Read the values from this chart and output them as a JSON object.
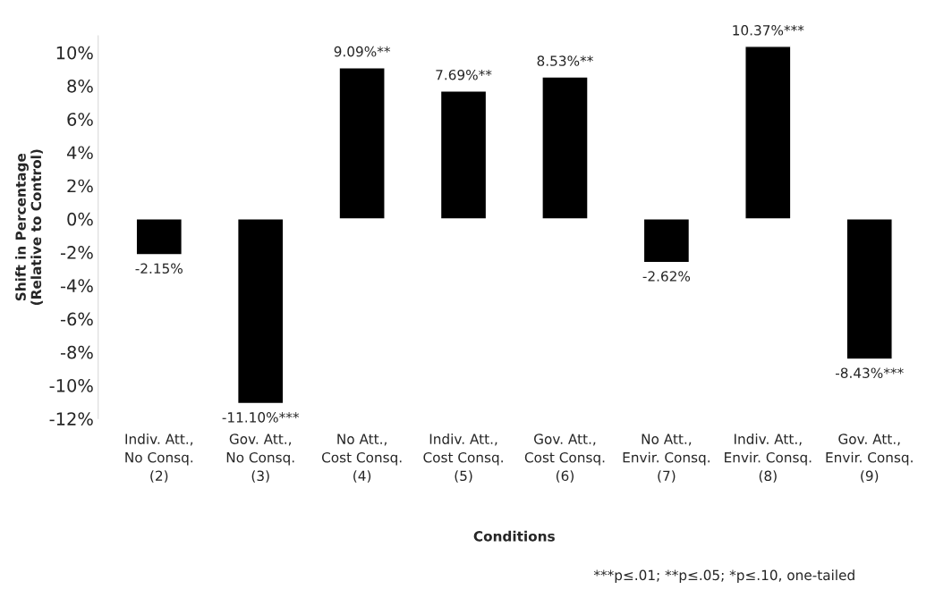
{
  "chart_data": {
    "type": "bar",
    "xlabel": "Conditions",
    "ylabel": "Shift in Percentage\n(Relative to Control)",
    "categories": [
      "Indiv. Att.,\nNo Consq.\n(2)",
      "Gov. Att.,\nNo Consq.\n(3)",
      "No Att.,\nCost Consq.\n(4)",
      "Indiv. Att.,\nCost Consq.\n(5)",
      "Gov. Att.,\nCost Consq.\n(6)",
      "No Att.,\nEnvir. Consq.\n(7)",
      "Indiv. Att.,\nEnvir. Consq.\n(8)",
      "Gov. Att.,\nEnvir. Consq.\n(9)"
    ],
    "values": [
      -2.15,
      -11.1,
      9.09,
      7.69,
      8.53,
      -2.62,
      10.37,
      -8.43
    ],
    "value_labels": [
      "-2.15%",
      "-11.10%***",
      "9.09%**",
      "7.69%**",
      "8.53%**",
      "-2.62%",
      "10.37%***",
      "-8.43%***"
    ],
    "color": "#000000",
    "ylim": [
      -12,
      11
    ],
    "yticks": [
      {
        "value": -12,
        "label": "-12%"
      },
      {
        "value": -10,
        "label": "-10%"
      },
      {
        "value": -8,
        "label": "-8%"
      },
      {
        "value": -6,
        "label": "-6%"
      },
      {
        "value": -4,
        "label": "-4%"
      },
      {
        "value": -2,
        "label": "-2%"
      },
      {
        "value": 0,
        "label": "0%"
      },
      {
        "value": 2,
        "label": "2%"
      },
      {
        "value": 4,
        "label": "4%"
      },
      {
        "value": 6,
        "label": "6%"
      },
      {
        "value": 8,
        "label": "8%"
      },
      {
        "value": 10,
        "label": "10%"
      }
    ],
    "grid": false,
    "annotations": [
      "***p≤.01; **p≤.05; *p≤.10, one-tailed"
    ]
  }
}
